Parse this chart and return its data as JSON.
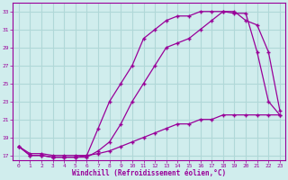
{
  "x": [
    0,
    1,
    2,
    3,
    4,
    5,
    6,
    7,
    8,
    9,
    10,
    11,
    12,
    13,
    14,
    15,
    16,
    17,
    18,
    19,
    20,
    21,
    22,
    23
  ],
  "line1": [
    18,
    17,
    17,
    16.8,
    16.8,
    16.8,
    17,
    20,
    23,
    25,
    27,
    30,
    31,
    32,
    32.5,
    32.5,
    33,
    33,
    33,
    32.8,
    32.8,
    28.5,
    23,
    21.5
  ],
  "line2": [
    18,
    17,
    17,
    16.8,
    16.8,
    16.8,
    16.8,
    17.5,
    18.5,
    20.5,
    23,
    25,
    27,
    29,
    29.5,
    30,
    31,
    32,
    33,
    33,
    32,
    31.5,
    28.5,
    22
  ],
  "line3": [
    18,
    17.2,
    17.2,
    17,
    17,
    17,
    17,
    17.2,
    17.5,
    18,
    18.5,
    19,
    19.5,
    20,
    20.5,
    20.5,
    21,
    21,
    21.5,
    21.5,
    21.5,
    21.5,
    21.5,
    21.5
  ],
  "color": "#990099",
  "bg_color": "#d0eded",
  "grid_color": "#b0d8d8",
  "xlabel": "Windchill (Refroidissement éolien,°C)",
  "ylim": [
    16.5,
    34
  ],
  "xlim": [
    -0.5,
    23.5
  ],
  "yticks": [
    17,
    19,
    21,
    23,
    25,
    27,
    29,
    31,
    33
  ],
  "xticks": [
    0,
    1,
    2,
    3,
    4,
    5,
    6,
    7,
    8,
    9,
    10,
    11,
    12,
    13,
    14,
    15,
    16,
    17,
    18,
    19,
    20,
    21,
    22,
    23
  ]
}
